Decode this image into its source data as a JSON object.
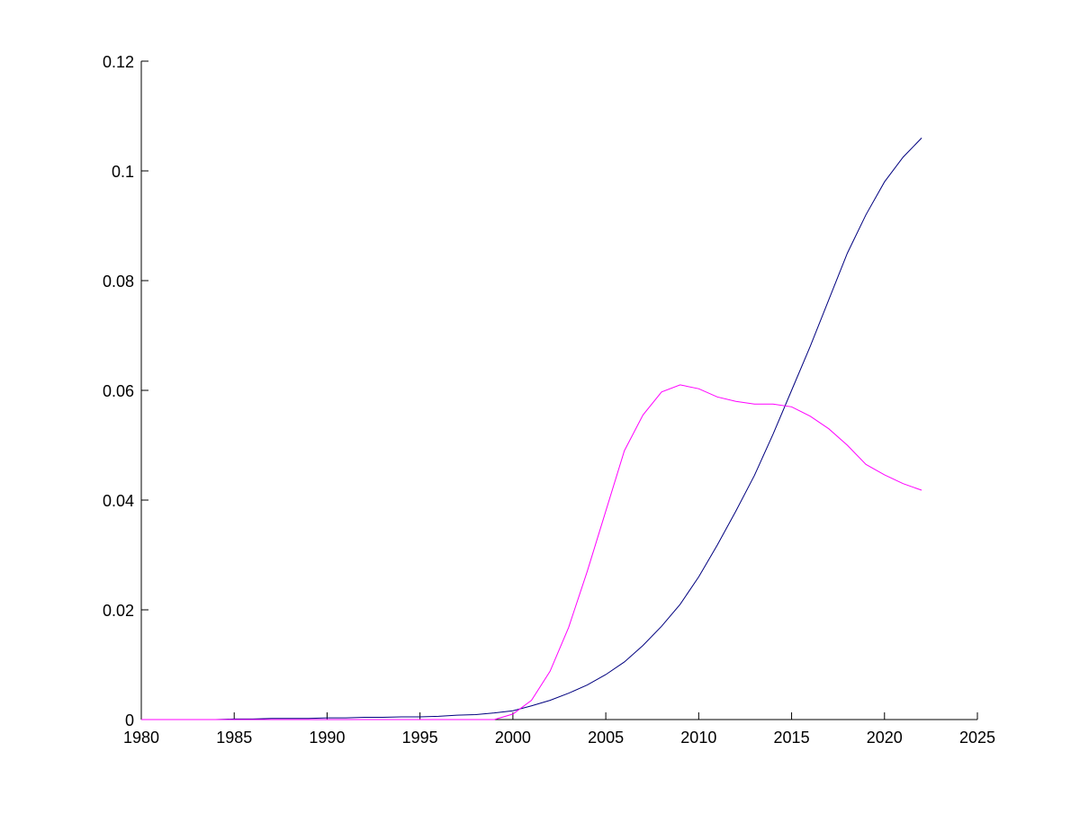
{
  "chart_data": {
    "type": "line",
    "x": [
      1980,
      1981,
      1982,
      1983,
      1984,
      1985,
      1986,
      1987,
      1988,
      1989,
      1990,
      1991,
      1992,
      1993,
      1994,
      1995,
      1996,
      1997,
      1998,
      1999,
      2000,
      2001,
      2002,
      2003,
      2004,
      2005,
      2006,
      2007,
      2008,
      2009,
      2010,
      2011,
      2012,
      2013,
      2014,
      2015,
      2016,
      2017,
      2018,
      2019,
      2020,
      2021,
      2022
    ],
    "series": [
      {
        "color": "#00007f",
        "values": [
          0,
          0,
          0,
          0,
          0,
          0.0001,
          0.0001,
          0.0002,
          0.0002,
          0.0002,
          0.0003,
          0.0003,
          0.0004,
          0.0004,
          0.0005,
          0.0005,
          0.0006,
          0.0008,
          0.0009,
          0.0012,
          0.0016,
          0.0025,
          0.0035,
          0.0048,
          0.0063,
          0.0082,
          0.0105,
          0.0135,
          0.017,
          0.021,
          0.026,
          0.0318,
          0.038,
          0.0445,
          0.052,
          0.06,
          0.068,
          0.0765,
          0.085,
          0.092,
          0.098,
          0.1025,
          0.106
        ]
      },
      {
        "color": "#ff00ff",
        "values": [
          0,
          0,
          0,
          0,
          0,
          0,
          0,
          0,
          0,
          0,
          0,
          0,
          0,
          0,
          0,
          0,
          0,
          0,
          0,
          0,
          0.001,
          0.0035,
          0.0088,
          0.0168,
          0.027,
          0.038,
          0.049,
          0.0555,
          0.0597,
          0.061,
          0.0603,
          0.0588,
          0.058,
          0.0575,
          0.0575,
          0.057,
          0.0553,
          0.053,
          0.05,
          0.0465,
          0.0446,
          0.043,
          0.0418
        ]
      }
    ],
    "xlim": [
      1980,
      2025
    ],
    "xticks": [
      1980,
      1985,
      1990,
      1995,
      2000,
      2005,
      2010,
      2015,
      2020,
      2025
    ],
    "ylim": [
      0,
      0.12
    ],
    "yticks": [
      0,
      0.02,
      0.04,
      0.06,
      0.08,
      0.1,
      0.12
    ]
  }
}
